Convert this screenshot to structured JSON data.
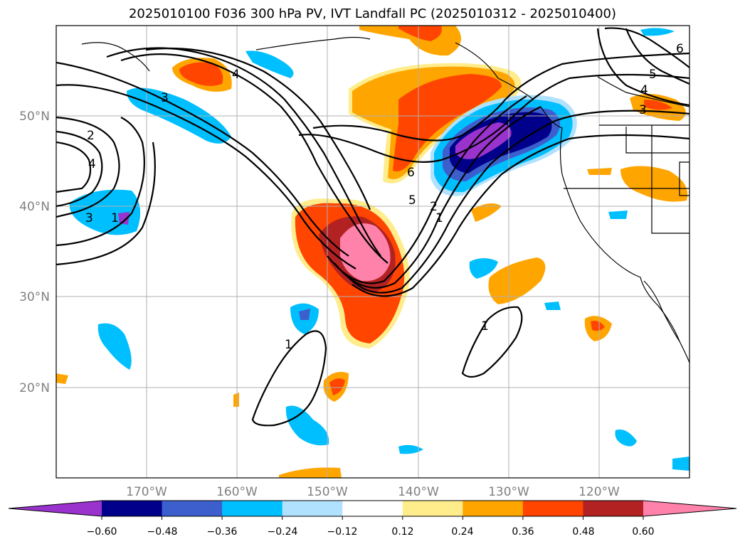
{
  "title": "2025010100 F036 300 hPa PV, IVT Landfall PC (2025010312 - 2025010400)",
  "map": {
    "projection": "PlateCarree",
    "lon_range": [
      -180,
      -110
    ],
    "lat_range": [
      10,
      60
    ],
    "gridlines": true,
    "lon_ticks": [
      "170°W",
      "160°W",
      "150°W",
      "140°W",
      "130°W",
      "120°W"
    ],
    "lat_ticks": [
      "20°N",
      "30°N",
      "40°N",
      "50°N"
    ]
  },
  "contour_labels": [
    "3",
    "4",
    "2",
    "4",
    "3",
    "1",
    "6",
    "5",
    "2",
    "1",
    "1",
    "1",
    "5",
    "4",
    "3",
    "6"
  ],
  "colorbar": {
    "ticks": [
      "−0.60",
      "−0.48",
      "−0.36",
      "−0.24",
      "−0.12",
      "0.12",
      "0.24",
      "0.36",
      "0.48",
      "0.60"
    ],
    "colors": [
      "#9a32cd",
      "#00008b",
      "#3c5fcd",
      "#00bfff",
      "#b0e2ff",
      "#ffffff",
      "#ffec8b",
      "#ffa500",
      "#ff4500",
      "#b22222",
      "#ff82ab"
    ],
    "extend": "both"
  }
}
